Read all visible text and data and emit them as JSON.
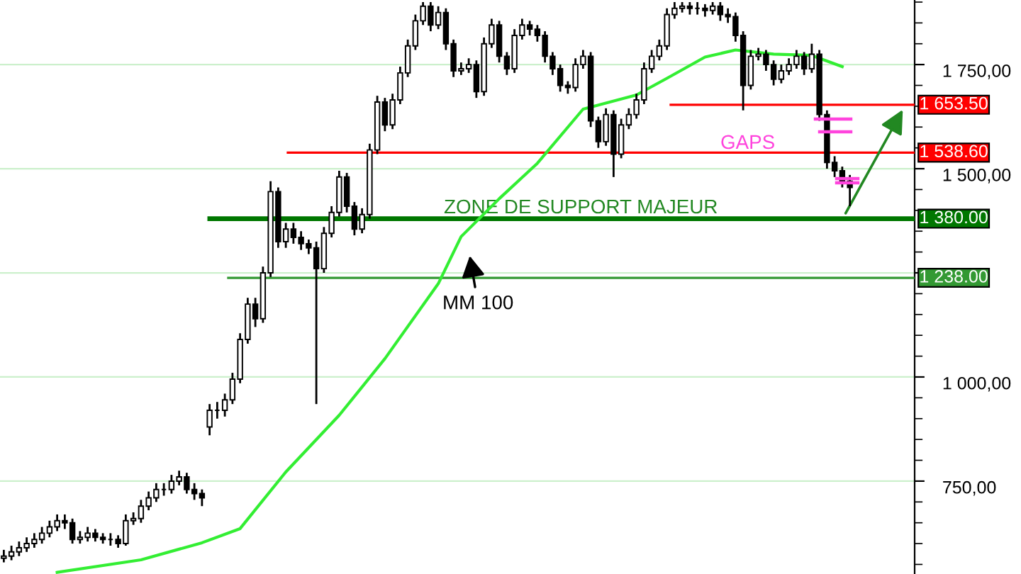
{
  "chart_data": {
    "type": "candlestick",
    "categories": [
      null,
      null,
      null,
      null,
      null,
      null,
      null,
      null,
      null,
      null,
      null,
      null,
      null,
      null,
      null,
      null,
      null,
      null,
      null,
      null,
      null,
      null,
      null,
      null,
      null,
      null,
      null,
      null,
      null,
      null,
      null,
      null,
      null,
      null,
      null,
      null,
      null,
      null,
      null,
      null,
      null,
      null,
      null,
      null,
      null,
      null,
      null,
      null,
      null,
      null,
      null,
      null,
      null,
      null,
      null,
      null,
      null,
      null,
      null,
      null,
      null,
      null,
      null,
      null,
      null,
      null,
      null,
      null,
      null,
      null,
      null,
      null,
      null,
      null,
      null,
      null,
      null,
      null,
      null,
      null,
      null,
      null,
      null,
      null,
      null,
      null,
      null,
      null,
      null,
      null,
      null,
      null,
      null,
      null,
      null,
      null,
      null,
      null,
      null,
      null,
      null,
      null,
      null,
      null,
      null,
      null,
      null,
      null,
      null,
      null,
      null,
      null,
      null,
      null,
      null,
      null,
      null,
      null,
      null,
      null
    ],
    "series": [
      {
        "type": "candlestick",
        "color": "#000000",
        "ohlc": [
          [
            565,
            585,
            555,
            570
          ],
          [
            570,
            595,
            560,
            580
          ],
          [
            580,
            605,
            570,
            590
          ],
          [
            590,
            615,
            580,
            600
          ],
          [
            600,
            625,
            590,
            610
          ],
          [
            610,
            640,
            600,
            625
          ],
          [
            625,
            655,
            615,
            640
          ],
          [
            640,
            670,
            630,
            655
          ],
          [
            655,
            670,
            635,
            650
          ],
          [
            650,
            660,
            600,
            610
          ],
          [
            610,
            630,
            600,
            615
          ],
          [
            615,
            640,
            605,
            625
          ],
          [
            625,
            635,
            605,
            615
          ],
          [
            615,
            625,
            600,
            610
          ],
          [
            610,
            625,
            595,
            610
          ],
          [
            610,
            620,
            590,
            600
          ],
          [
            600,
            670,
            595,
            655
          ],
          [
            655,
            675,
            645,
            660
          ],
          [
            660,
            705,
            650,
            690
          ],
          [
            690,
            725,
            680,
            710
          ],
          [
            710,
            745,
            700,
            730
          ],
          [
            730,
            745,
            715,
            730
          ],
          [
            730,
            765,
            720,
            750
          ],
          [
            750,
            775,
            740,
            760
          ],
          [
            760,
            770,
            720,
            730
          ],
          [
            730,
            745,
            705,
            720
          ],
          [
            720,
            730,
            690,
            710
          ],
          [
            880,
            935,
            860,
            920
          ],
          [
            920,
            940,
            900,
            920
          ],
          [
            920,
            960,
            905,
            945
          ],
          [
            945,
            1010,
            935,
            995
          ],
          [
            995,
            1105,
            985,
            1090
          ],
          [
            1090,
            1190,
            1080,
            1175
          ],
          [
            1175,
            1190,
            1120,
            1140
          ],
          [
            1140,
            1265,
            1130,
            1250
          ],
          [
            1250,
            1470,
            1240,
            1445
          ],
          [
            1445,
            1455,
            1310,
            1325
          ],
          [
            1325,
            1370,
            1310,
            1355
          ],
          [
            1355,
            1370,
            1320,
            1335
          ],
          [
            1335,
            1350,
            1305,
            1320
          ],
          [
            1320,
            1330,
            1295,
            1310
          ],
          [
            1310,
            1325,
            935,
            1260
          ],
          [
            1260,
            1360,
            1250,
            1345
          ],
          [
            1345,
            1410,
            1335,
            1395
          ],
          [
            1395,
            1495,
            1385,
            1480
          ],
          [
            1480,
            1490,
            1395,
            1410
          ],
          [
            1410,
            1420,
            1340,
            1355
          ],
          [
            1355,
            1405,
            1345,
            1390
          ],
          [
            1390,
            1560,
            1380,
            1545
          ],
          [
            1545,
            1675,
            1535,
            1660
          ],
          [
            1660,
            1670,
            1590,
            1605
          ],
          [
            1605,
            1680,
            1595,
            1665
          ],
          [
            1665,
            1745,
            1655,
            1730
          ],
          [
            1730,
            1810,
            1720,
            1795
          ],
          [
            1795,
            1870,
            1785,
            1855
          ],
          [
            1855,
            1900,
            1845,
            1890
          ],
          [
            1890,
            1900,
            1830,
            1845
          ],
          [
            1845,
            1890,
            1835,
            1875
          ],
          [
            1875,
            1885,
            1785,
            1800
          ],
          [
            1800,
            1810,
            1720,
            1735
          ],
          [
            1735,
            1755,
            1725,
            1740
          ],
          [
            1740,
            1765,
            1730,
            1750
          ],
          [
            1750,
            1760,
            1670,
            1685
          ],
          [
            1685,
            1815,
            1675,
            1800
          ],
          [
            1800,
            1860,
            1790,
            1845
          ],
          [
            1845,
            1855,
            1755,
            1770
          ],
          [
            1770,
            1780,
            1725,
            1740
          ],
          [
            1740,
            1835,
            1730,
            1820
          ],
          [
            1820,
            1860,
            1810,
            1845
          ],
          [
            1845,
            1855,
            1820,
            1835
          ],
          [
            1835,
            1845,
            1805,
            1820
          ],
          [
            1820,
            1830,
            1755,
            1770
          ],
          [
            1770,
            1780,
            1725,
            1740
          ],
          [
            1740,
            1750,
            1685,
            1700
          ],
          [
            1700,
            1710,
            1680,
            1695
          ],
          [
            1695,
            1765,
            1685,
            1750
          ],
          [
            1750,
            1785,
            1740,
            1770
          ],
          [
            1770,
            1780,
            1600,
            1615
          ],
          [
            1615,
            1625,
            1550,
            1565
          ],
          [
            1565,
            1645,
            1555,
            1630
          ],
          [
            1630,
            1640,
            1480,
            1535
          ],
          [
            1535,
            1620,
            1525,
            1605
          ],
          [
            1605,
            1645,
            1595,
            1630
          ],
          [
            1630,
            1680,
            1620,
            1665
          ],
          [
            1665,
            1755,
            1655,
            1740
          ],
          [
            1740,
            1785,
            1730,
            1770
          ],
          [
            1770,
            1810,
            1760,
            1795
          ],
          [
            1795,
            1885,
            1785,
            1870
          ],
          [
            1870,
            1900,
            1860,
            1885
          ],
          [
            1885,
            1900,
            1875,
            1890
          ],
          [
            1890,
            1900,
            1870,
            1885
          ],
          [
            1885,
            1900,
            1870,
            1885
          ],
          [
            1885,
            1895,
            1865,
            1880
          ],
          [
            1880,
            1900,
            1870,
            1890
          ],
          [
            1890,
            1900,
            1855,
            1870
          ],
          [
            1870,
            1885,
            1850,
            1865
          ],
          [
            1865,
            1875,
            1805,
            1820
          ],
          [
            1820,
            1830,
            1640,
            1700
          ],
          [
            1700,
            1785,
            1690,
            1770
          ],
          [
            1770,
            1790,
            1760,
            1775
          ],
          [
            1775,
            1785,
            1735,
            1750
          ],
          [
            1750,
            1760,
            1700,
            1715
          ],
          [
            1715,
            1750,
            1705,
            1735
          ],
          [
            1735,
            1765,
            1725,
            1750
          ],
          [
            1750,
            1785,
            1740,
            1770
          ],
          [
            1770,
            1780,
            1725,
            1740
          ],
          [
            1740,
            1800,
            1730,
            1775
          ],
          [
            1775,
            1785,
            1615,
            1630
          ],
          [
            1630,
            1640,
            1500,
            1515
          ],
          [
            1515,
            1530,
            1480,
            1495
          ],
          [
            1495,
            1505,
            1455,
            1470
          ],
          [
            1470,
            1485,
            1410,
            1455
          ],
          null,
          null,
          null,
          null,
          null,
          null,
          null,
          null
        ]
      },
      {
        "type": "line",
        "color": "#33ee33",
        "values": [
          null,
          null,
          null,
          null,
          null,
          null,
          null,
          531,
          null,
          null,
          null,
          null,
          null,
          null,
          null,
          null,
          null,
          null,
          561,
          null,
          null,
          null,
          null,
          null,
          null,
          null,
          602,
          null,
          null,
          null,
          null,
          636,
          null,
          null,
          null,
          null,
          null,
          772,
          null,
          null,
          null,
          null,
          null,
          null,
          908,
          null,
          null,
          null,
          null,
          null,
          1044,
          null,
          null,
          null,
          null,
          null,
          null,
          1224,
          null,
          null,
          1337,
          null,
          null,
          null,
          null,
          1428,
          null,
          null,
          null,
          null,
          1513,
          null,
          null,
          null,
          null,
          null,
          1643,
          null,
          null,
          null,
          null,
          null,
          null,
          1677,
          null,
          null,
          null,
          1717,
          null,
          null,
          null,
          null,
          1768,
          null,
          null,
          null,
          1785,
          null,
          null,
          null,
          null,
          1775,
          null,
          null,
          null,
          null,
          1772,
          null,
          null,
          null,
          1745,
          null,
          null,
          null,
          null,
          null,
          null,
          null,
          null,
          null
        ]
      }
    ],
    "ylim": [
      527,
      1905
    ],
    "yticks": [
      {
        "value": 750,
        "label": "750,00"
      },
      {
        "value": 1000,
        "label": "1 000,00"
      },
      {
        "value": 1250,
        "label": null
      },
      {
        "value": 1500,
        "label": "1 500,00"
      },
      {
        "value": 1750,
        "label": "1 750,00"
      }
    ],
    "grid": "y",
    "tick_labels": "y",
    "ref_lines": [
      {
        "axis": "y",
        "value": 1653.5,
        "label": "1 653.50",
        "color": "#ff0000"
      },
      {
        "axis": "y",
        "value": 1538.6,
        "label": "1 538.60",
        "color": "#ff0000"
      },
      {
        "axis": "y",
        "value": 1380,
        "label": "1 380.00",
        "color": "#007700"
      },
      {
        "axis": "y",
        "value": 1238,
        "label": "1 238.00",
        "color": "#339933"
      }
    ],
    "annotations": [
      "ZONE DE SUPPORT MAJEUR",
      "GAPS",
      "MM 100"
    ]
  }
}
